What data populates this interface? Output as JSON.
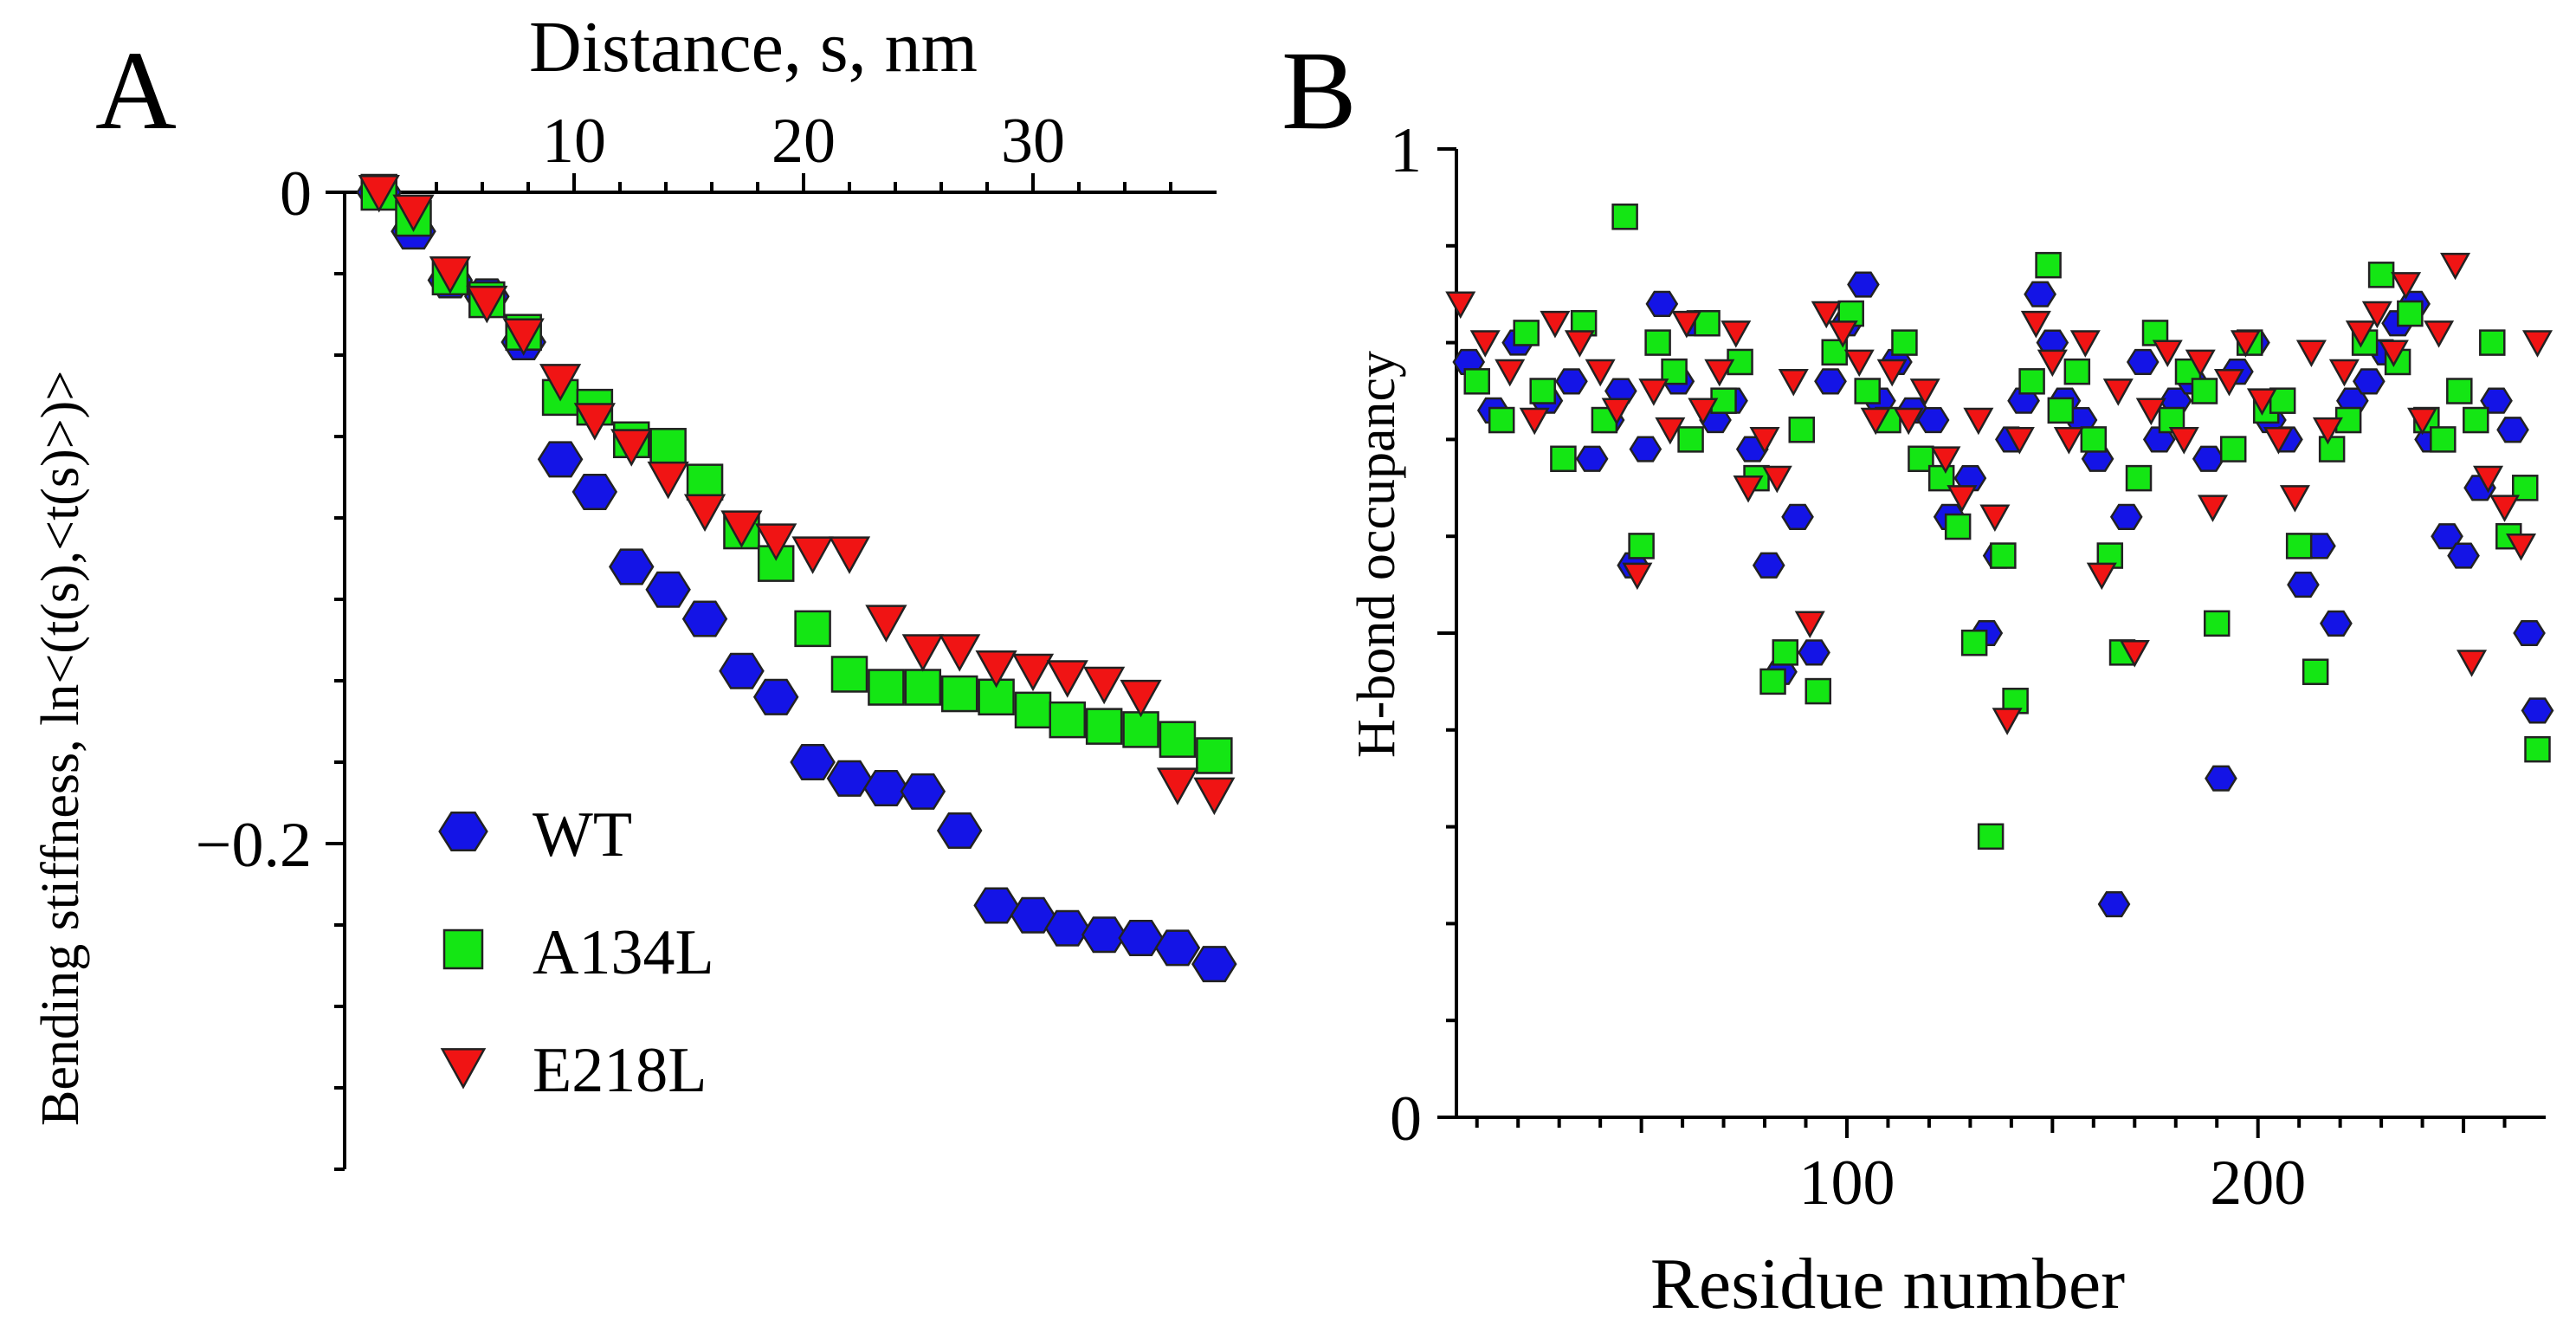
{
  "colors": {
    "WT": "#1414e6",
    "A134L": "#14e614",
    "E218L": "#f01414",
    "outline": "#222222"
  },
  "icons": {
    "WT": "hexagon-marker",
    "A134L": "square-marker",
    "E218L": "down-triangle-marker"
  },
  "chart_data": [
    {
      "panel": "A",
      "type": "scatter",
      "xlabel": "Distance, s, nm",
      "ylabel": "Bending stiffness, ln<(t(s),<t(s)>)>",
      "xlim": [
        0,
        38
      ],
      "ylim": [
        -0.3,
        0
      ],
      "x_axis_position": "top",
      "xticks": [
        10,
        20,
        30
      ],
      "xtick_labels": [
        "10",
        "20",
        "30"
      ],
      "yticks": [
        0,
        -0.2
      ],
      "ytick_labels": [
        "0",
        "−0.2"
      ],
      "grid": false,
      "legend": "bottom-left",
      "series": [
        {
          "name": "WT",
          "marker": "hexagon",
          "x": [
            1.5,
            3,
            4.6,
            6.2,
            7.8,
            9.4,
            10.9,
            12.5,
            14.1,
            15.7,
            17.3,
            18.8,
            20.4,
            22,
            23.6,
            25.2,
            26.8,
            28.4,
            30,
            31.5,
            33.1,
            34.7,
            36.3,
            37.9
          ],
          "y": [
            0,
            -0.012,
            -0.027,
            -0.032,
            -0.046,
            -0.082,
            -0.092,
            -0.115,
            -0.122,
            -0.131,
            -0.147,
            -0.155,
            -0.175,
            -0.18,
            -0.183,
            -0.184,
            -0.196,
            -0.219,
            -0.222,
            -0.226,
            -0.228,
            -0.229,
            -0.232,
            -0.237
          ]
        },
        {
          "name": "A134L",
          "marker": "square",
          "x": [
            1.5,
            3,
            4.6,
            6.2,
            7.8,
            9.4,
            10.9,
            12.5,
            14.1,
            15.7,
            17.3,
            18.8,
            20.4,
            22,
            23.6,
            25.2,
            26.8,
            28.4,
            30,
            31.5,
            33.1,
            34.7,
            36.3,
            37.9
          ],
          "y": [
            0,
            -0.008,
            -0.026,
            -0.033,
            -0.043,
            -0.063,
            -0.066,
            -0.076,
            -0.078,
            -0.089,
            -0.104,
            -0.114,
            -0.134,
            -0.148,
            -0.152,
            -0.152,
            -0.154,
            -0.155,
            -0.159,
            -0.162,
            -0.164,
            -0.165,
            -0.168,
            -0.173
          ]
        },
        {
          "name": "E218L",
          "marker": "triangle-down",
          "x": [
            1.5,
            3,
            4.6,
            6.2,
            7.8,
            9.4,
            10.9,
            12.5,
            14.1,
            15.7,
            17.3,
            18.8,
            20.4,
            22,
            23.6,
            25.2,
            26.8,
            28.4,
            30,
            31.5,
            33.1,
            34.7,
            36.3,
            37.9
          ],
          "y": [
            0,
            -0.006,
            -0.025,
            -0.034,
            -0.044,
            -0.058,
            -0.07,
            -0.078,
            -0.088,
            -0.098,
            -0.103,
            -0.107,
            -0.111,
            -0.111,
            -0.132,
            -0.141,
            -0.141,
            -0.146,
            -0.147,
            -0.149,
            -0.151,
            -0.155,
            -0.182,
            -0.185
          ]
        }
      ]
    },
    {
      "panel": "B",
      "type": "scatter",
      "xlabel": "Residue number",
      "ylabel": "H-bond occupancy",
      "xlim": [
        5,
        270
      ],
      "ylim": [
        0,
        1
      ],
      "xticks": [
        100,
        200
      ],
      "xtick_labels": [
        "100",
        "200"
      ],
      "yticks": [
        0,
        1
      ],
      "ytick_labels": [
        "0",
        "1"
      ],
      "grid": false,
      "legend": "none",
      "series": [
        {
          "name": "WT",
          "marker": "hexagon",
          "x": [
            8,
            14,
            20,
            27,
            33,
            38,
            42,
            45,
            48,
            51,
            55,
            59,
            63,
            68,
            72,
            77,
            81,
            84,
            88,
            92,
            96,
            100,
            104,
            108,
            112,
            116,
            121,
            125,
            130,
            134,
            137,
            140,
            143,
            147,
            150,
            153,
            157,
            161,
            165,
            168,
            172,
            176,
            180,
            184,
            188,
            191,
            195,
            199,
            203,
            207,
            211,
            215,
            219,
            223,
            227,
            231,
            234,
            238,
            242,
            246,
            250,
            254,
            258,
            262,
            266,
            268
          ],
          "y": [
            0.78,
            0.73,
            0.8,
            0.74,
            0.76,
            0.68,
            0.72,
            0.75,
            0.57,
            0.69,
            0.84,
            0.76,
            0.82,
            0.72,
            0.74,
            0.69,
            0.57,
            0.46,
            0.62,
            0.48,
            0.76,
            0.82,
            0.86,
            0.74,
            0.78,
            0.73,
            0.72,
            0.62,
            0.66,
            0.5,
            0.58,
            0.7,
            0.74,
            0.85,
            0.8,
            0.74,
            0.72,
            0.68,
            0.22,
            0.62,
            0.78,
            0.7,
            0.74,
            0.76,
            0.68,
            0.35,
            0.77,
            0.8,
            0.72,
            0.7,
            0.55,
            0.59,
            0.51,
            0.74,
            0.76,
            0.79,
            0.82,
            0.84,
            0.7,
            0.6,
            0.58,
            0.65,
            0.74,
            0.71,
            0.5,
            0.42
          ]
        },
        {
          "name": "A134L",
          "marker": "square",
          "x": [
            10,
            16,
            22,
            26,
            31,
            36,
            41,
            46,
            50,
            54,
            58,
            62,
            66,
            70,
            74,
            78,
            82,
            85,
            89,
            93,
            97,
            101,
            105,
            110,
            114,
            118,
            123,
            127,
            131,
            135,
            138,
            141,
            145,
            149,
            152,
            156,
            160,
            164,
            167,
            171,
            175,
            179,
            183,
            187,
            190,
            194,
            198,
            202,
            206,
            210,
            214,
            218,
            222,
            226,
            230,
            234,
            237,
            241,
            245,
            249,
            253,
            257,
            261,
            265,
            268
          ],
          "y": [
            0.76,
            0.72,
            0.81,
            0.75,
            0.68,
            0.82,
            0.72,
            0.93,
            0.59,
            0.8,
            0.77,
            0.7,
            0.82,
            0.74,
            0.78,
            0.66,
            0.45,
            0.48,
            0.71,
            0.44,
            0.79,
            0.83,
            0.75,
            0.72,
            0.8,
            0.68,
            0.66,
            0.61,
            0.49,
            0.29,
            0.58,
            0.43,
            0.76,
            0.88,
            0.73,
            0.77,
            0.7,
            0.58,
            0.48,
            0.66,
            0.81,
            0.72,
            0.77,
            0.75,
            0.51,
            0.69,
            0.8,
            0.73,
            0.74,
            0.59,
            0.46,
            0.69,
            0.72,
            0.8,
            0.87,
            0.78,
            0.83,
            0.72,
            0.7,
            0.75,
            0.72,
            0.8,
            0.6,
            0.65,
            0.38
          ]
        },
        {
          "name": "E218L",
          "marker": "triangle-down",
          "x": [
            6,
            12,
            18,
            24,
            29,
            35,
            40,
            44,
            49,
            53,
            57,
            61,
            65,
            69,
            73,
            76,
            80,
            83,
            87,
            91,
            95,
            99,
            103,
            107,
            111,
            115,
            119,
            124,
            128,
            132,
            136,
            139,
            142,
            146,
            150,
            154,
            158,
            162,
            166,
            170,
            174,
            178,
            182,
            186,
            189,
            193,
            197,
            201,
            205,
            209,
            213,
            217,
            221,
            225,
            229,
            233,
            236,
            240,
            244,
            248,
            252,
            256,
            260,
            264,
            268
          ],
          "y": [
            0.84,
            0.8,
            0.77,
            0.72,
            0.82,
            0.8,
            0.77,
            0.73,
            0.56,
            0.75,
            0.71,
            0.82,
            0.73,
            0.77,
            0.81,
            0.65,
            0.7,
            0.66,
            0.76,
            0.51,
            0.83,
            0.81,
            0.78,
            0.72,
            0.77,
            0.72,
            0.75,
            0.68,
            0.64,
            0.72,
            0.62,
            0.41,
            0.7,
            0.82,
            0.78,
            0.7,
            0.8,
            0.56,
            0.75,
            0.48,
            0.73,
            0.79,
            0.7,
            0.78,
            0.63,
            0.76,
            0.8,
            0.74,
            0.7,
            0.64,
            0.79,
            0.71,
            0.77,
            0.81,
            0.83,
            0.79,
            0.86,
            0.72,
            0.81,
            0.88,
            0.47,
            0.66,
            0.63,
            0.59,
            0.8
          ]
        }
      ]
    }
  ]
}
